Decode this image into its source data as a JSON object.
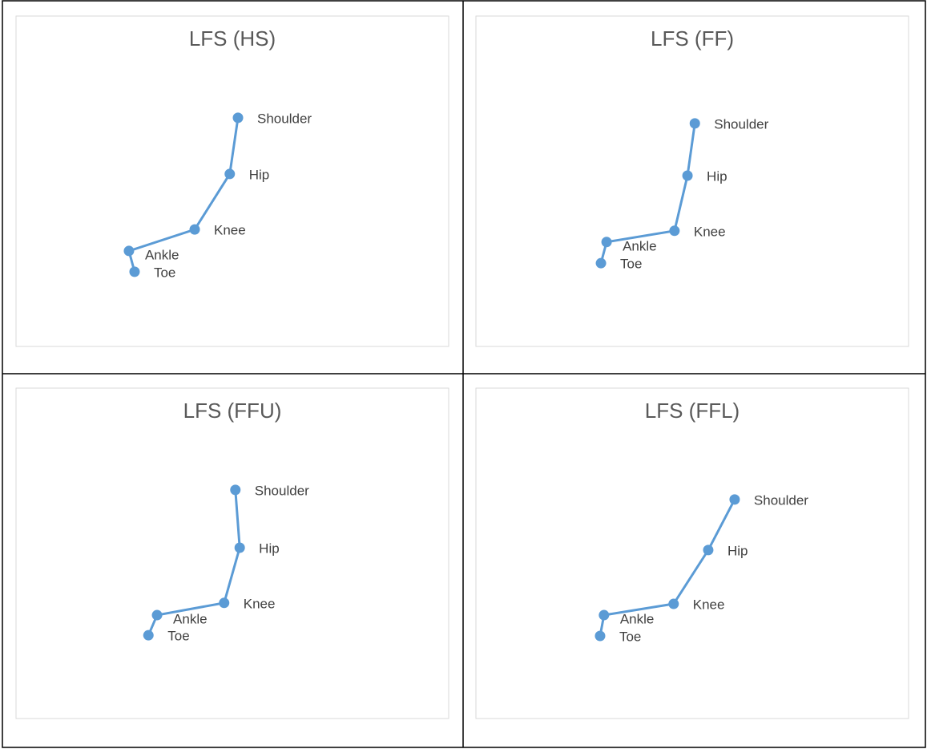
{
  "chart_data": [
    {
      "type": "scatter",
      "title": "LFS (HS)",
      "categories": [
        "Shoulder",
        "Hip",
        "Knee",
        "Ankle",
        "Toe"
      ],
      "x": [
        51.3,
        49.4,
        41.3,
        26.1,
        27.4
      ],
      "y": [
        69.2,
        52.2,
        35.4,
        28.9,
        22.6
      ],
      "xlim": [
        0,
        100
      ],
      "ylim": [
        0,
        100
      ],
      "color": "#5b9bd5",
      "line": true
    },
    {
      "type": "scatter",
      "title": "LFS (FF)",
      "categories": [
        "Shoulder",
        "Hip",
        "Knee",
        "Ankle",
        "Toe"
      ],
      "x": [
        50.6,
        48.9,
        45.9,
        30.2,
        28.9
      ],
      "y": [
        67.5,
        51.7,
        35.0,
        31.6,
        25.2
      ],
      "xlim": [
        0,
        100
      ],
      "ylim": [
        0,
        100
      ],
      "color": "#5b9bd5",
      "line": true
    },
    {
      "type": "scatter",
      "title": "LFS (FFU)",
      "categories": [
        "Shoulder",
        "Hip",
        "Knee",
        "Ankle",
        "Toe"
      ],
      "x": [
        50.7,
        51.7,
        48.1,
        32.6,
        30.6
      ],
      "y": [
        69.2,
        51.7,
        35.0,
        31.3,
        25.2
      ],
      "xlim": [
        0,
        100
      ],
      "ylim": [
        0,
        100
      ],
      "color": "#5b9bd5",
      "line": true
    },
    {
      "type": "scatter",
      "title": "LFS (FFL)",
      "categories": [
        "Shoulder",
        "Hip",
        "Knee",
        "Ankle",
        "Toe"
      ],
      "x": [
        59.8,
        53.7,
        45.7,
        29.6,
        28.7
      ],
      "y": [
        66.3,
        51.0,
        34.7,
        31.3,
        25.0
      ],
      "xlim": [
        0,
        100
      ],
      "ylim": [
        0,
        100
      ],
      "color": "#5b9bd5",
      "line": true
    }
  ]
}
